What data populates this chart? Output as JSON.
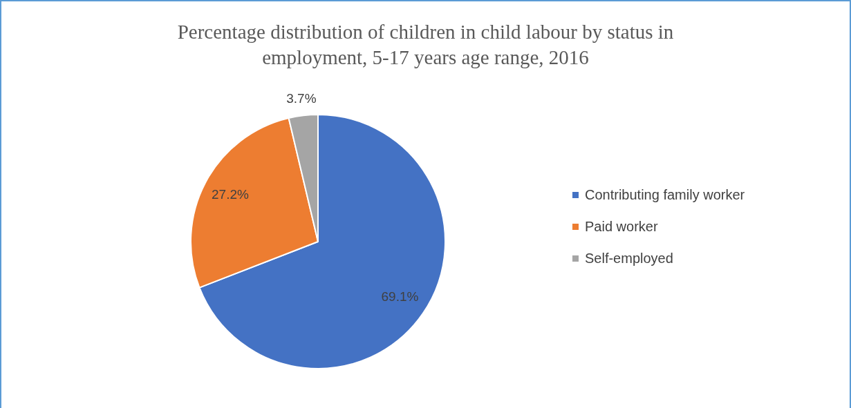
{
  "chart_data": {
    "type": "pie",
    "title": "Percentage distribution of children in child labour by status in employment, 5-17 years age range, 2016",
    "categories": [
      "Contributing family worker",
      "Paid worker",
      "Self-employed"
    ],
    "values": [
      69.1,
      27.2,
      3.7
    ],
    "colors": [
      "#4472c4",
      "#ed7d31",
      "#a5a5a5"
    ],
    "value_labels": [
      "69.1%",
      "27.2%",
      "3.7%"
    ],
    "legend": "right"
  }
}
